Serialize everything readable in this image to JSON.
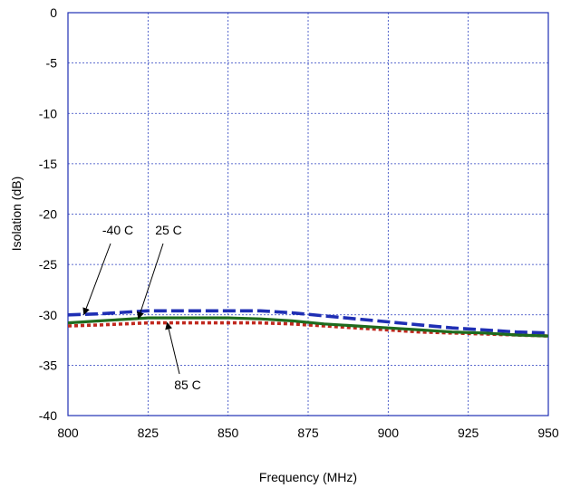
{
  "chart_data": {
    "type": "line",
    "title": "",
    "xlabel": "Frequency (MHz)",
    "ylabel": "Isolation (dB)",
    "xlim": [
      800,
      950
    ],
    "ylim": [
      -40,
      0
    ],
    "xticks": [
      800,
      825,
      850,
      875,
      900,
      925,
      950
    ],
    "yticks": [
      0,
      -5,
      -10,
      -15,
      -20,
      -25,
      -30,
      -35,
      -40
    ],
    "xtick_labels": [
      "800",
      "825",
      "850",
      "875",
      "900",
      "925",
      "950"
    ],
    "ytick_labels": [
      "0",
      "-5",
      "-10",
      "-15",
      "-20",
      "-25",
      "-30",
      "-35",
      "-40"
    ],
    "grid": true,
    "series": [
      {
        "name": "-40 C",
        "color": "#1f2fb4",
        "style": "dashed",
        "x": [
          800,
          810,
          825,
          840,
          850,
          860,
          870,
          880,
          890,
          900,
          910,
          920,
          930,
          940,
          950
        ],
        "y": [
          -30.0,
          -29.9,
          -29.6,
          -29.6,
          -29.6,
          -29.6,
          -29.8,
          -30.1,
          -30.4,
          -30.7,
          -31.0,
          -31.3,
          -31.5,
          -31.7,
          -31.8
        ]
      },
      {
        "name": "25 C",
        "color": "#1e6b1e",
        "style": "solid",
        "x": [
          800,
          810,
          825,
          840,
          850,
          860,
          870,
          880,
          890,
          900,
          910,
          920,
          930,
          940,
          950
        ],
        "y": [
          -30.8,
          -30.6,
          -30.3,
          -30.3,
          -30.3,
          -30.4,
          -30.6,
          -30.9,
          -31.1,
          -31.3,
          -31.5,
          -31.7,
          -31.8,
          -32.0,
          -32.1
        ]
      },
      {
        "name": "85 C",
        "color": "#c0281e",
        "style": "dotted",
        "x": [
          800,
          810,
          825,
          840,
          850,
          860,
          870,
          880,
          890,
          900,
          910,
          920,
          930,
          940,
          950
        ],
        "y": [
          -31.1,
          -31.0,
          -30.8,
          -30.8,
          -30.8,
          -30.8,
          -30.9,
          -31.1,
          -31.3,
          -31.5,
          -31.7,
          -31.8,
          -31.9,
          -32.0,
          -32.1
        ]
      }
    ],
    "annotations": [
      {
        "text": "-40 C",
        "series": "-40 C",
        "at_x": 805
      },
      {
        "text": "25 C",
        "series": "25 C",
        "at_x": 822
      },
      {
        "text": "85 C",
        "series": "85 C",
        "at_x": 831
      }
    ]
  }
}
